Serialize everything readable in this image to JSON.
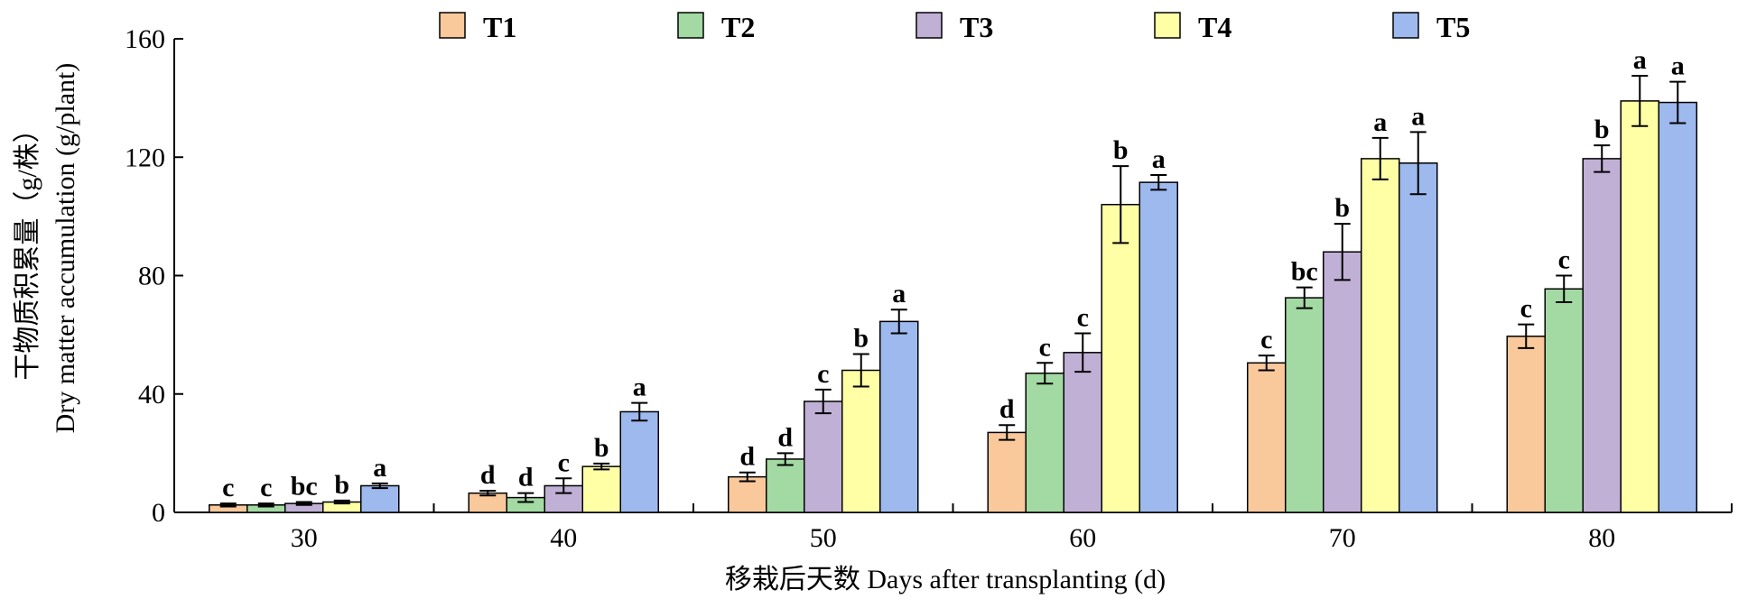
{
  "chart_data": {
    "type": "bar",
    "title": "",
    "xlabel": "移栽后天数 Days after transplanting (d)",
    "ylabel_line1": "干物质积累量（g/株）",
    "ylabel_line2": "Dry matter accumulation (g/plant)",
    "ylim": [
      0,
      160
    ],
    "yticks": [
      0,
      40,
      80,
      120,
      160
    ],
    "legend_position": "top",
    "categories": [
      "30",
      "40",
      "50",
      "60",
      "70",
      "80"
    ],
    "series": [
      {
        "name": "T1",
        "color": "#F9C89B",
        "values": [
          2.5,
          6.5,
          12,
          27,
          50.5,
          59.5
        ],
        "errors": [
          0.5,
          0.8,
          1.5,
          2.5,
          2.5,
          4
        ],
        "labels": [
          "c",
          "d",
          "d",
          "d",
          "c",
          "c"
        ]
      },
      {
        "name": "T2",
        "color": "#A3D9A3",
        "values": [
          2.5,
          5,
          18,
          47,
          72.5,
          75.5
        ],
        "errors": [
          0.5,
          1.5,
          2,
          3.5,
          3.5,
          4.5
        ],
        "labels": [
          "c",
          "d",
          "d",
          "c",
          "bc",
          "c"
        ]
      },
      {
        "name": "T3",
        "color": "#C1B0D6",
        "values": [
          3,
          9,
          37.5,
          54,
          88,
          119.5
        ],
        "errors": [
          0.5,
          2.5,
          4,
          6.5,
          9.5,
          4.5
        ],
        "labels": [
          "bc",
          "c",
          "c",
          "c",
          "b",
          "b"
        ]
      },
      {
        "name": "T4",
        "color": "#FFFFA6",
        "values": [
          3.5,
          15.5,
          48,
          104,
          119.5,
          139
        ],
        "errors": [
          0.5,
          1,
          5.5,
          13,
          7,
          8.5
        ],
        "labels": [
          "b",
          "b",
          "b",
          "b",
          "a",
          "a"
        ]
      },
      {
        "name": "T5",
        "color": "#9DB9EE",
        "values": [
          9,
          34,
          64.5,
          111.5,
          118,
          138.5
        ],
        "errors": [
          0.8,
          3,
          4,
          2.5,
          10.5,
          7
        ],
        "labels": [
          "a",
          "a",
          "a",
          "a",
          "a",
          "a"
        ]
      }
    ]
  }
}
